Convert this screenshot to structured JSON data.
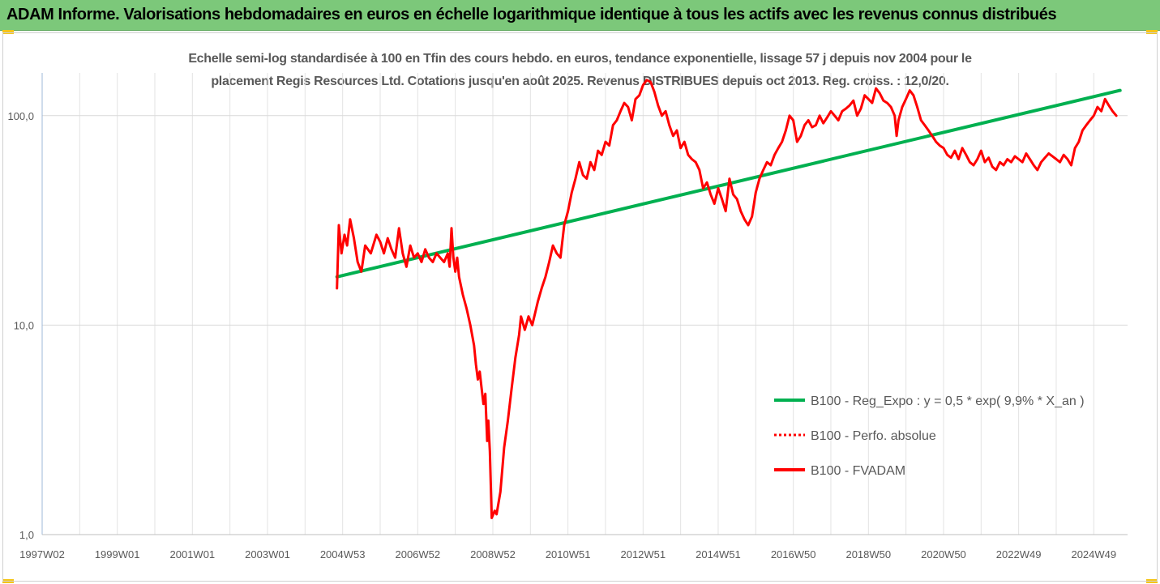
{
  "header": {
    "title": "ADAM Informe. Valorisations hebdomadaires en euros en échelle logarithmique identique à tous les actifs avec les revenus connus distribués"
  },
  "chart_data": {
    "type": "line",
    "title_lines": [
      "Echelle semi-log standardisée à 100 en Tfin des cours hebdo. en euros, tendance exponentielle, lissage 57 j depuis nov 2004 pour le",
      "placement Regis Resources Ltd. Cotations jusqu'en août 2025. Revenus DISTRIBUES depuis oct 2013. Reg. croiss. : 12,0/20."
    ],
    "y_scale": "log",
    "ylim": [
      1,
      160
    ],
    "y_ticks": [
      {
        "value": 1,
        "label": "1,0"
      },
      {
        "value": 10,
        "label": "10,0"
      },
      {
        "value": 100,
        "label": "100,0"
      }
    ],
    "xlim": [
      1997.0,
      2025.9
    ],
    "x_tick_labels": [
      {
        "year": 1997.0,
        "label": "1997W02"
      },
      {
        "year": 1999.0,
        "label": "1999W01"
      },
      {
        "year": 2001.0,
        "label": "2001W01"
      },
      {
        "year": 2003.0,
        "label": "2003W01"
      },
      {
        "year": 2005.0,
        "label": "2004W53"
      },
      {
        "year": 2007.0,
        "label": "2006W52"
      },
      {
        "year": 2009.0,
        "label": "2008W52"
      },
      {
        "year": 2011.0,
        "label": "2010W51"
      },
      {
        "year": 2013.0,
        "label": "2012W51"
      },
      {
        "year": 2015.0,
        "label": "2014W51"
      },
      {
        "year": 2017.0,
        "label": "2016W50"
      },
      {
        "year": 2019.0,
        "label": "2018W50"
      },
      {
        "year": 2021.0,
        "label": "2020W50"
      },
      {
        "year": 2023.0,
        "label": "2022W49"
      },
      {
        "year": 2025.0,
        "label": "2024W49"
      }
    ],
    "grid_x": true,
    "grid_y": true,
    "legend_position": "right",
    "series": [
      {
        "name": "B100 - Reg_Expo : y = 0,5 * exp( 9,9% *  X_an )",
        "color": "#00b050",
        "style": "solid",
        "points": [
          [
            2004.85,
            17.0
          ],
          [
            2025.7,
            132.0
          ]
        ]
      },
      {
        "name": "B100 - Perfo. absolue",
        "color": "#ff0000",
        "style": "dotted",
        "points": []
      },
      {
        "name": "B100 - FVADAM",
        "color": "#ff0000",
        "style": "solid",
        "points": [
          [
            2004.85,
            15
          ],
          [
            2004.9,
            30
          ],
          [
            2004.97,
            22
          ],
          [
            2005.05,
            27
          ],
          [
            2005.12,
            24
          ],
          [
            2005.2,
            32
          ],
          [
            2005.3,
            26
          ],
          [
            2005.4,
            20
          ],
          [
            2005.5,
            18
          ],
          [
            2005.6,
            24
          ],
          [
            2005.75,
            22
          ],
          [
            2005.9,
            27
          ],
          [
            2006.0,
            25
          ],
          [
            2006.1,
            22
          ],
          [
            2006.2,
            26
          ],
          [
            2006.3,
            23
          ],
          [
            2006.4,
            21
          ],
          [
            2006.5,
            29
          ],
          [
            2006.6,
            22
          ],
          [
            2006.7,
            19
          ],
          [
            2006.8,
            24
          ],
          [
            2006.9,
            21
          ],
          [
            2007.0,
            22
          ],
          [
            2007.1,
            20
          ],
          [
            2007.2,
            23
          ],
          [
            2007.3,
            21
          ],
          [
            2007.4,
            20
          ],
          [
            2007.5,
            22
          ],
          [
            2007.6,
            21
          ],
          [
            2007.7,
            20
          ],
          [
            2007.8,
            22
          ],
          [
            2007.85,
            19
          ],
          [
            2007.9,
            29
          ],
          [
            2007.95,
            21
          ],
          [
            2008.0,
            18
          ],
          [
            2008.05,
            21
          ],
          [
            2008.1,
            17
          ],
          [
            2008.2,
            14
          ],
          [
            2008.3,
            12
          ],
          [
            2008.4,
            10
          ],
          [
            2008.5,
            8
          ],
          [
            2008.55,
            6.5
          ],
          [
            2008.6,
            5.5
          ],
          [
            2008.65,
            6
          ],
          [
            2008.7,
            5
          ],
          [
            2008.75,
            4.2
          ],
          [
            2008.8,
            4.7
          ],
          [
            2008.85,
            2.8
          ],
          [
            2008.88,
            3.5
          ],
          [
            2008.92,
            2.5
          ],
          [
            2008.97,
            1.2
          ],
          [
            2009.05,
            1.3
          ],
          [
            2009.1,
            1.25
          ],
          [
            2009.2,
            1.6
          ],
          [
            2009.3,
            2.6
          ],
          [
            2009.4,
            3.5
          ],
          [
            2009.5,
            5
          ],
          [
            2009.6,
            7
          ],
          [
            2009.7,
            9
          ],
          [
            2009.75,
            11
          ],
          [
            2009.85,
            9.5
          ],
          [
            2009.95,
            11
          ],
          [
            2010.05,
            10
          ],
          [
            2010.2,
            13
          ],
          [
            2010.3,
            15
          ],
          [
            2010.4,
            17
          ],
          [
            2010.5,
            20
          ],
          [
            2010.6,
            24
          ],
          [
            2010.7,
            22
          ],
          [
            2010.8,
            21
          ],
          [
            2010.9,
            30
          ],
          [
            2011.0,
            35
          ],
          [
            2011.1,
            43
          ],
          [
            2011.2,
            50
          ],
          [
            2011.3,
            60
          ],
          [
            2011.4,
            52
          ],
          [
            2011.5,
            50
          ],
          [
            2011.6,
            60
          ],
          [
            2011.7,
            55
          ],
          [
            2011.8,
            68
          ],
          [
            2011.9,
            65
          ],
          [
            2012.0,
            75
          ],
          [
            2012.1,
            72
          ],
          [
            2012.2,
            90
          ],
          [
            2012.3,
            95
          ],
          [
            2012.4,
            105
          ],
          [
            2012.5,
            115
          ],
          [
            2012.6,
            110
          ],
          [
            2012.7,
            95
          ],
          [
            2012.8,
            120
          ],
          [
            2012.9,
            125
          ],
          [
            2013.0,
            140
          ],
          [
            2013.1,
            148
          ],
          [
            2013.2,
            145
          ],
          [
            2013.3,
            130
          ],
          [
            2013.4,
            112
          ],
          [
            2013.5,
            100
          ],
          [
            2013.6,
            105
          ],
          [
            2013.7,
            90
          ],
          [
            2013.8,
            80
          ],
          [
            2013.9,
            85
          ],
          [
            2014.0,
            70
          ],
          [
            2014.1,
            75
          ],
          [
            2014.2,
            65
          ],
          [
            2014.3,
            62
          ],
          [
            2014.4,
            60
          ],
          [
            2014.5,
            55
          ],
          [
            2014.6,
            45
          ],
          [
            2014.7,
            48
          ],
          [
            2014.8,
            42
          ],
          [
            2014.9,
            38
          ],
          [
            2015.0,
            45
          ],
          [
            2015.1,
            40
          ],
          [
            2015.2,
            35
          ],
          [
            2015.3,
            50
          ],
          [
            2015.4,
            42
          ],
          [
            2015.5,
            40
          ],
          [
            2015.6,
            35
          ],
          [
            2015.7,
            32
          ],
          [
            2015.8,
            30
          ],
          [
            2015.9,
            33
          ],
          [
            2016.0,
            43
          ],
          [
            2016.1,
            50
          ],
          [
            2016.2,
            55
          ],
          [
            2016.3,
            60
          ],
          [
            2016.4,
            58
          ],
          [
            2016.5,
            65
          ],
          [
            2016.6,
            70
          ],
          [
            2016.7,
            75
          ],
          [
            2016.8,
            85
          ],
          [
            2016.9,
            100
          ],
          [
            2017.0,
            95
          ],
          [
            2017.1,
            75
          ],
          [
            2017.2,
            80
          ],
          [
            2017.3,
            90
          ],
          [
            2017.4,
            95
          ],
          [
            2017.5,
            88
          ],
          [
            2017.6,
            90
          ],
          [
            2017.7,
            100
          ],
          [
            2017.8,
            92
          ],
          [
            2017.9,
            98
          ],
          [
            2018.0,
            105
          ],
          [
            2018.1,
            100
          ],
          [
            2018.2,
            95
          ],
          [
            2018.3,
            105
          ],
          [
            2018.4,
            108
          ],
          [
            2018.5,
            112
          ],
          [
            2018.6,
            118
          ],
          [
            2018.7,
            100
          ],
          [
            2018.8,
            108
          ],
          [
            2018.9,
            125
          ],
          [
            2019.0,
            120
          ],
          [
            2019.1,
            115
          ],
          [
            2019.2,
            135
          ],
          [
            2019.3,
            128
          ],
          [
            2019.4,
            118
          ],
          [
            2019.5,
            115
          ],
          [
            2019.6,
            110
          ],
          [
            2019.7,
            100
          ],
          [
            2019.75,
            80
          ],
          [
            2019.8,
            95
          ],
          [
            2019.9,
            110
          ],
          [
            2020.0,
            120
          ],
          [
            2020.1,
            132
          ],
          [
            2020.2,
            125
          ],
          [
            2020.3,
            110
          ],
          [
            2020.4,
            95
          ],
          [
            2020.5,
            90
          ],
          [
            2020.6,
            85
          ],
          [
            2020.7,
            80
          ],
          [
            2020.8,
            75
          ],
          [
            2020.9,
            72
          ],
          [
            2021.0,
            70
          ],
          [
            2021.1,
            65
          ],
          [
            2021.2,
            63
          ],
          [
            2021.3,
            68
          ],
          [
            2021.4,
            62
          ],
          [
            2021.5,
            70
          ],
          [
            2021.6,
            65
          ],
          [
            2021.7,
            60
          ],
          [
            2021.8,
            58
          ],
          [
            2021.9,
            62
          ],
          [
            2022.0,
            68
          ],
          [
            2022.1,
            60
          ],
          [
            2022.2,
            63
          ],
          [
            2022.3,
            57
          ],
          [
            2022.4,
            55
          ],
          [
            2022.5,
            60
          ],
          [
            2022.6,
            58
          ],
          [
            2022.7,
            62
          ],
          [
            2022.8,
            60
          ],
          [
            2022.9,
            64
          ],
          [
            2023.0,
            62
          ],
          [
            2023.1,
            60
          ],
          [
            2023.2,
            66
          ],
          [
            2023.3,
            62
          ],
          [
            2023.4,
            58
          ],
          [
            2023.5,
            55
          ],
          [
            2023.6,
            60
          ],
          [
            2023.7,
            63
          ],
          [
            2023.8,
            66
          ],
          [
            2023.9,
            64
          ],
          [
            2024.0,
            62
          ],
          [
            2024.1,
            60
          ],
          [
            2024.2,
            65
          ],
          [
            2024.3,
            62
          ],
          [
            2024.4,
            58
          ],
          [
            2024.5,
            70
          ],
          [
            2024.6,
            75
          ],
          [
            2024.7,
            85
          ],
          [
            2024.8,
            90
          ],
          [
            2024.9,
            95
          ],
          [
            2025.0,
            100
          ],
          [
            2025.1,
            110
          ],
          [
            2025.2,
            105
          ],
          [
            2025.3,
            120
          ],
          [
            2025.4,
            112
          ],
          [
            2025.5,
            105
          ],
          [
            2025.6,
            100
          ]
        ]
      }
    ]
  }
}
